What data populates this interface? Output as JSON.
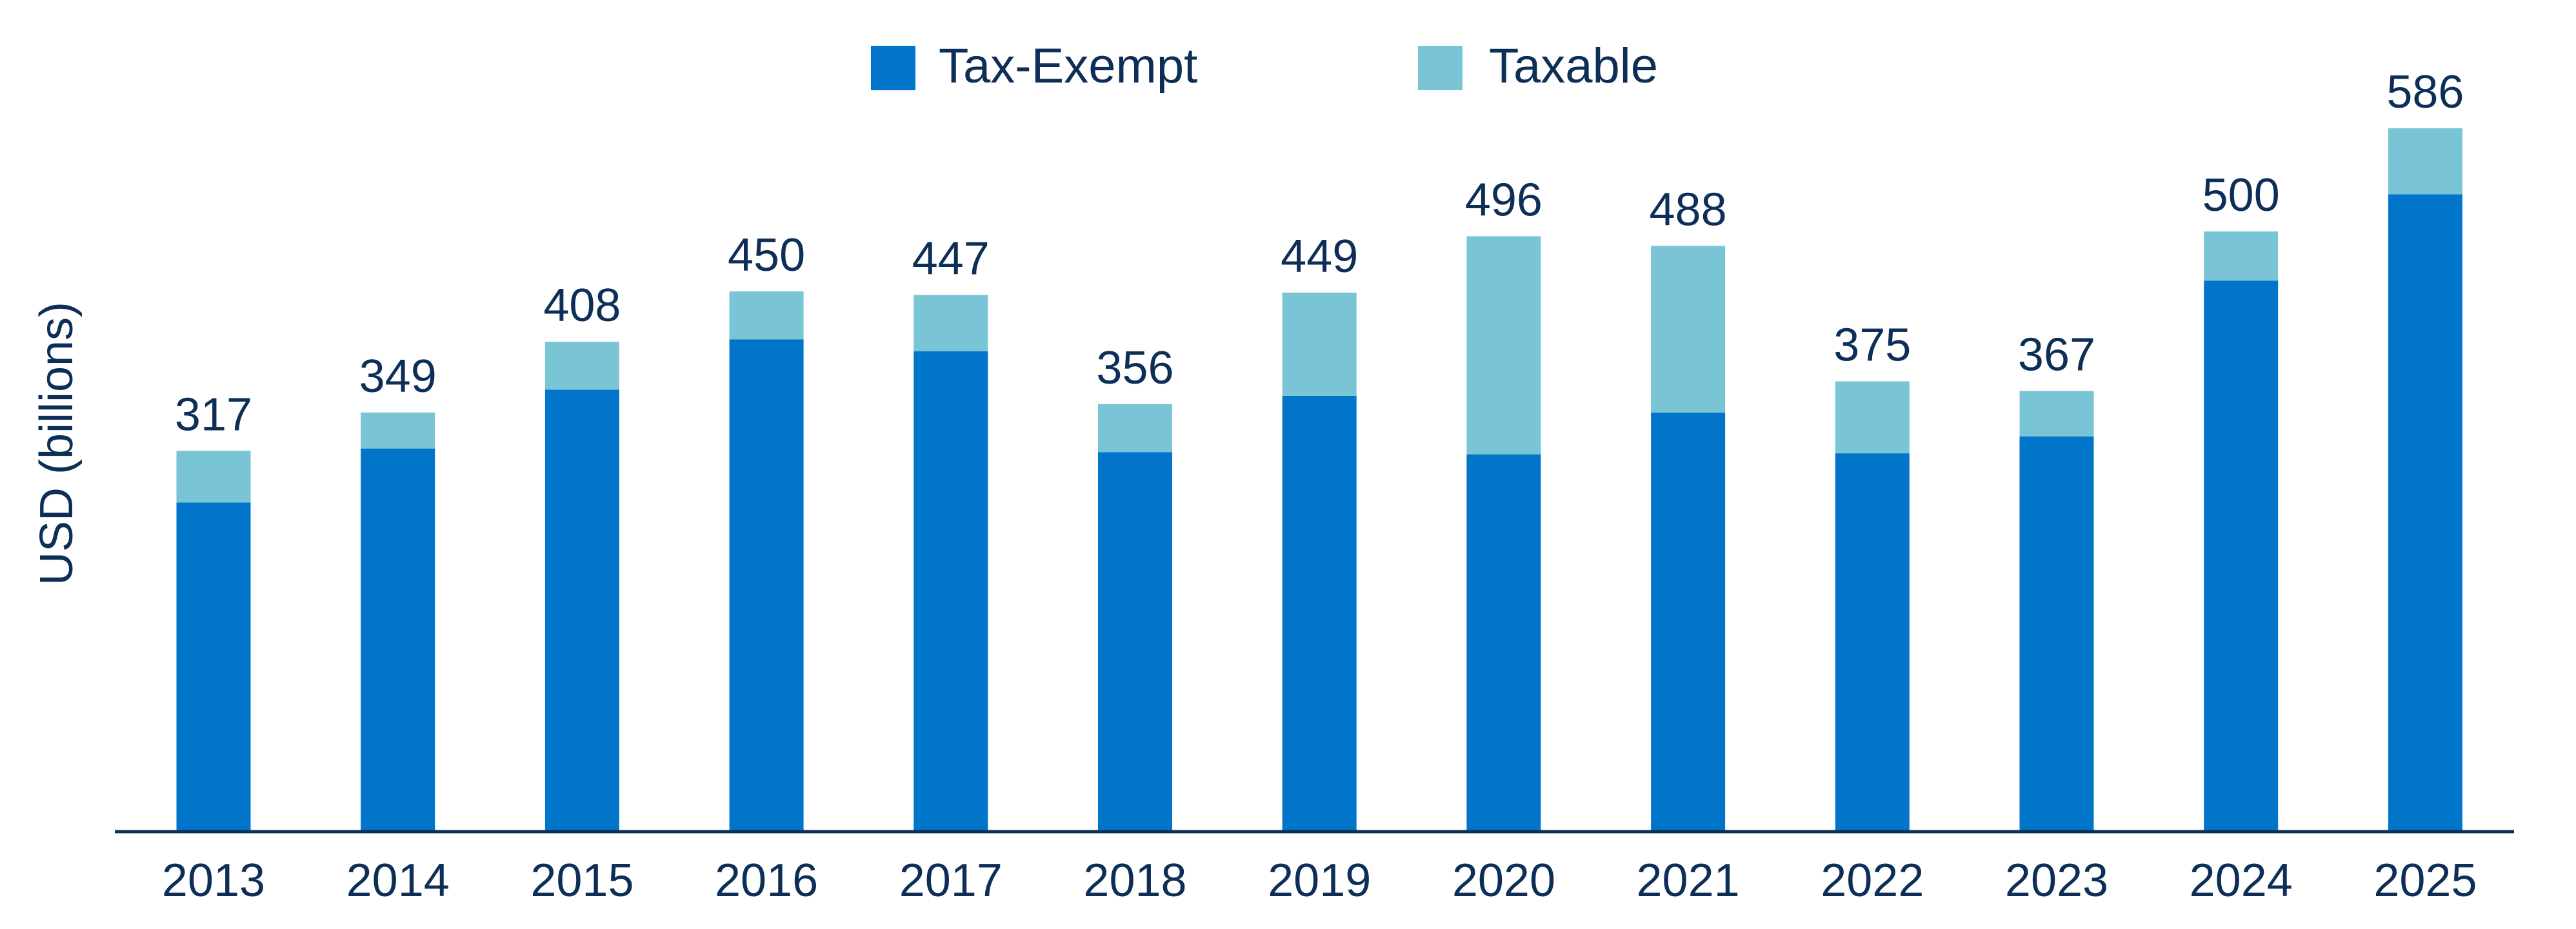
{
  "chart_data": {
    "type": "bar",
    "stacked": true,
    "title": "",
    "xlabel": "",
    "ylabel": "USD (billions)",
    "categories": [
      "2013",
      "2014",
      "2015",
      "2016",
      "2017",
      "2018",
      "2019",
      "2020",
      "2021",
      "2022",
      "2023",
      "2024",
      "2025"
    ],
    "series": [
      {
        "name": "Tax-Exempt",
        "color": "#0075c9",
        "values": [
          274,
          319,
          368,
          410,
          400,
          316,
          363,
          314,
          349,
          315,
          329,
          459,
          531
        ]
      },
      {
        "name": "Taxable",
        "color": "#7ac5d5",
        "values": [
          43,
          30,
          40,
          40,
          47,
          40,
          86,
          182,
          139,
          60,
          38,
          41,
          55
        ]
      }
    ],
    "totals": [
      "317",
      "349",
      "408",
      "450",
      "447",
      "356",
      "449",
      "496",
      "488",
      "375",
      "367",
      "500",
      "586"
    ],
    "ylim": [
      0,
      600
    ],
    "grid": false,
    "legend_position": "top-center",
    "axis_color": "#0d2f57"
  }
}
